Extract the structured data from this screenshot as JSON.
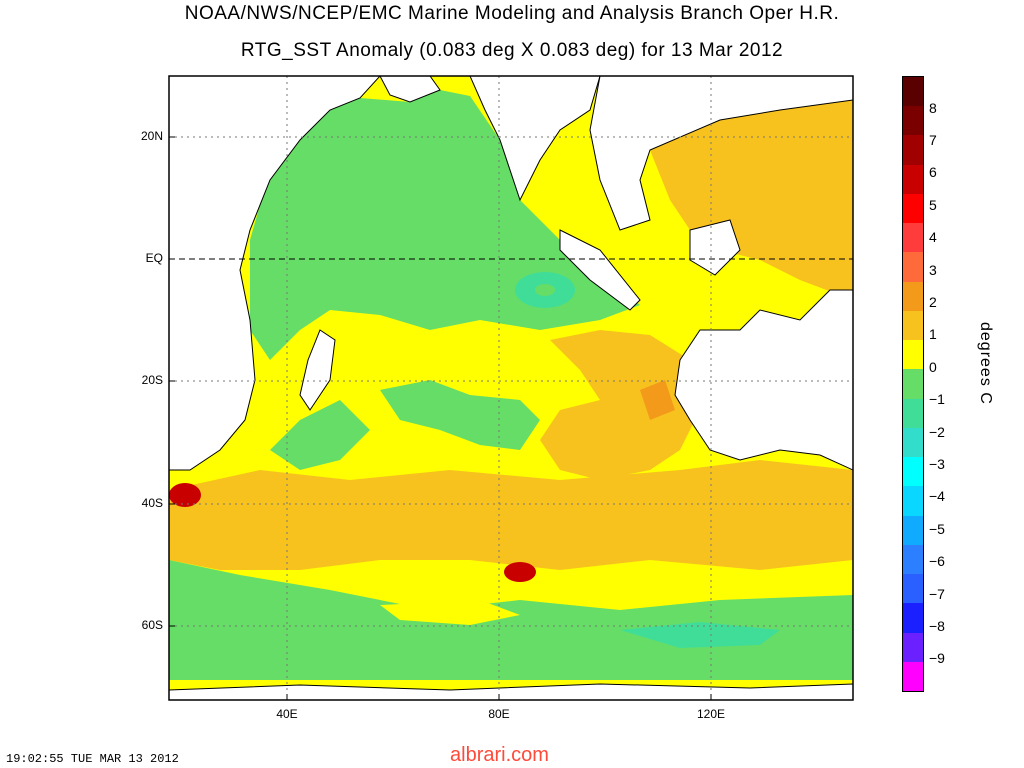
{
  "title_line1": "NOAA/NWS/NCEP/EMC Marine Modeling and Analysis Branch Oper H.R.",
  "title_line2": "RTG_SST Anomaly (0.083 deg X 0.083 deg) for 13 Mar 2012",
  "lat_labels": [
    "20N",
    "EQ",
    "20S",
    "40S",
    "60S"
  ],
  "lon_labels": [
    "40E",
    "80E",
    "120E"
  ],
  "colorbar": {
    "unit": "degrees C",
    "ticks": [
      "8",
      "7",
      "6",
      "5",
      "4",
      "3",
      "2",
      "1",
      "0",
      "−1",
      "−2",
      "−3",
      "−4",
      "−5",
      "−6",
      "−7",
      "−8",
      "−9"
    ],
    "colors": [
      "#5a0000",
      "#7a0000",
      "#a00000",
      "#c80000",
      "#ff0000",
      "#ff3c3c",
      "#ff6a3a",
      "#f39a1a",
      "#f7c21e",
      "#ffff00",
      "#66dd66",
      "#40dd99",
      "#33ddcc",
      "#00ffff",
      "#0ad7ff",
      "#10aaff",
      "#2c80ff",
      "#2a60ff",
      "#1a20ff",
      "#6a20ff",
      "#ff00ff"
    ]
  },
  "timestamp": "19:02:55  TUE MAR 13 2012",
  "watermark": "albrari.com"
}
